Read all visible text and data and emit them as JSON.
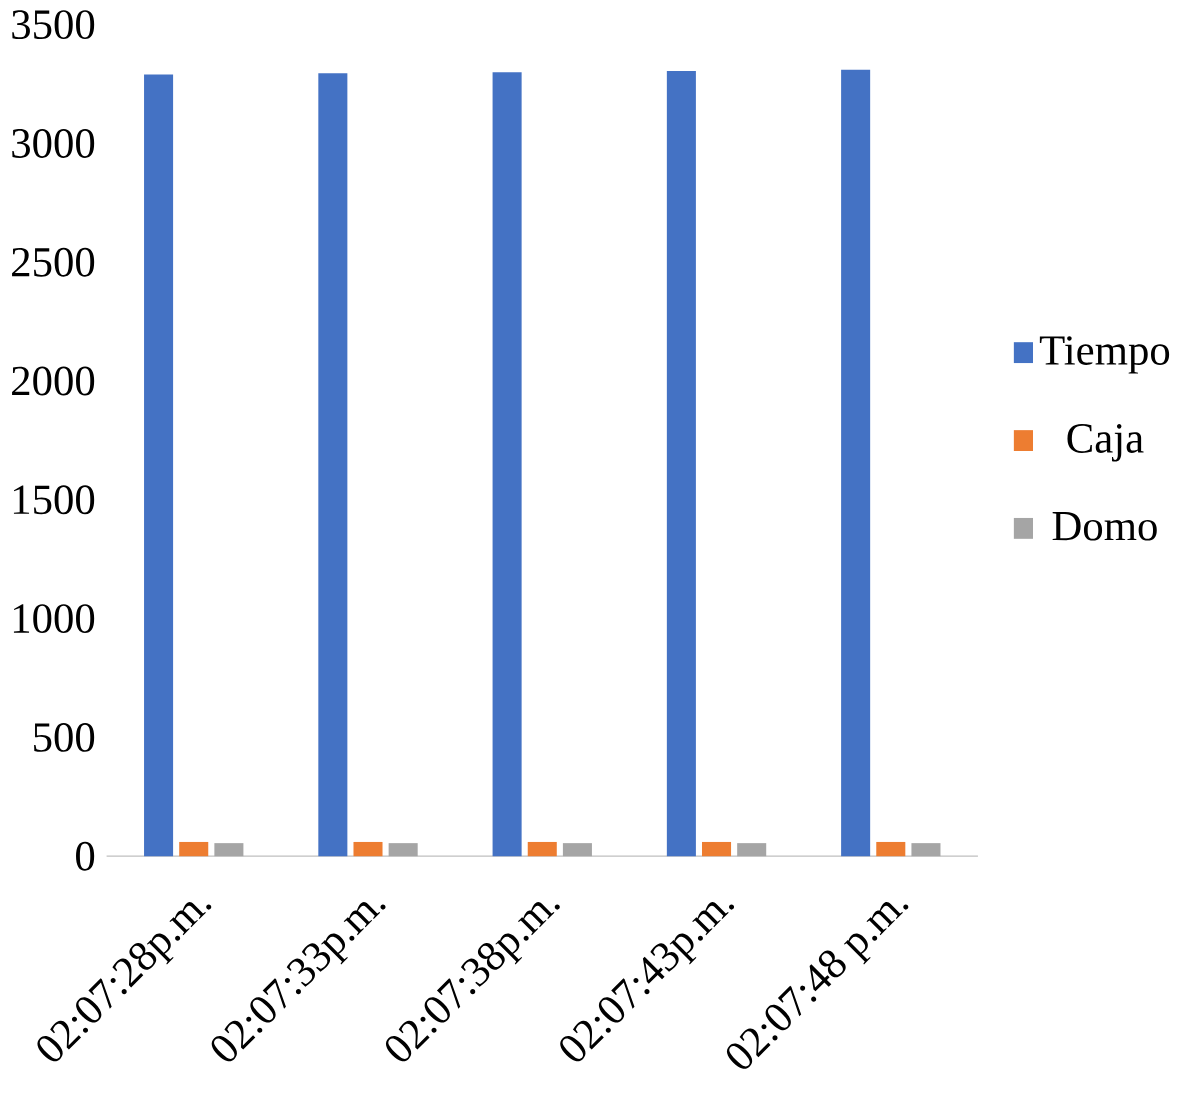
{
  "chart_data": {
    "type": "bar",
    "categories": [
      "02:07:28p.m.",
      "02:07:33p.m.",
      "02:07:38p.m.",
      "02:07:43p.m.",
      "02:07:48 p.m."
    ],
    "series": [
      {
        "name": "Tiempo",
        "color": "#4472c4",
        "values": [
          3290,
          3295,
          3300,
          3305,
          3310
        ]
      },
      {
        "name": "Caja",
        "color": "#ed7d31",
        "values": [
          60,
          60,
          60,
          60,
          60
        ]
      },
      {
        "name": "Domo",
        "color": "#a5a5a5",
        "values": [
          55,
          55,
          55,
          55,
          55
        ]
      }
    ],
    "ylim": [
      0,
      3500
    ],
    "yticks": [
      0,
      500,
      1000,
      1500,
      2000,
      2500,
      3000,
      3500
    ],
    "legend": "right"
  }
}
